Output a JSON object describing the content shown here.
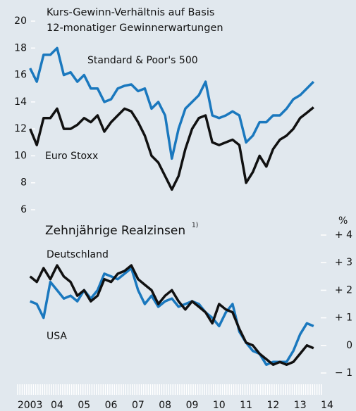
{
  "chart_data": [
    {
      "type": "line",
      "title": [
        "Kurs-Gewinn-Verhältnis auf Basis",
        "12-monatiger Gewinnerwartungen"
      ],
      "x": [
        2003.5,
        2003.75,
        2004,
        2004.25,
        2004.5,
        2004.75,
        2005,
        2005.25,
        2005.5,
        2005.75,
        2006,
        2006.25,
        2006.5,
        2006.75,
        2007,
        2007.25,
        2007.5,
        2007.75,
        2008,
        2008.25,
        2008.5,
        2008.75,
        2009,
        2009.25,
        2009.5,
        2009.75,
        2010,
        2010.25,
        2010.5,
        2010.75,
        2011,
        2011.25,
        2011.5,
        2011.75,
        2012,
        2012.25,
        2012.5,
        2012.75,
        2013,
        2013.25,
        2013.5,
        2013.75,
        2014
      ],
      "series": [
        {
          "name": "Standard & Poor's 500",
          "color": "#1a78be",
          "values": [
            16.5,
            15.5,
            17.5,
            17.5,
            18,
            16,
            16.2,
            15.5,
            16,
            15,
            15,
            14,
            14.2,
            15,
            15.2,
            15.3,
            14.8,
            15,
            13.5,
            14,
            13,
            9.8,
            12,
            13.5,
            14,
            14.5,
            15.5,
            13,
            12.8,
            13,
            13.3,
            13,
            11,
            11.5,
            12.5,
            12.5,
            13,
            13,
            13.5,
            14.2,
            14.5,
            15,
            15.5
          ]
        },
        {
          "name": "Euro Stoxx",
          "color": "#111111",
          "values": [
            12,
            10.8,
            12.8,
            12.8,
            13.5,
            12,
            12,
            12.3,
            12.8,
            12.5,
            13,
            11.8,
            12.5,
            13,
            13.5,
            13.3,
            12.5,
            11.5,
            10,
            9.5,
            8.5,
            7.5,
            8.5,
            10.5,
            12,
            12.8,
            13,
            11,
            10.8,
            11,
            11.2,
            10.8,
            8,
            8.8,
            10,
            9.2,
            10.5,
            11.2,
            11.5,
            12,
            12.8,
            13.2,
            13.6
          ]
        }
      ],
      "xlim": [
        2003,
        2014.5
      ],
      "ylim": [
        6,
        20
      ],
      "yticks": [
        6,
        8,
        10,
        12,
        14,
        16,
        18,
        20
      ]
    },
    {
      "type": "line",
      "title": "Zehnjährige Realzinsen",
      "title_note": "1)",
      "unit": "%",
      "x": [
        2003.5,
        2003.75,
        2004,
        2004.25,
        2004.5,
        2004.75,
        2005,
        2005.25,
        2005.5,
        2005.75,
        2006,
        2006.25,
        2006.5,
        2006.75,
        2007,
        2007.25,
        2007.5,
        2007.75,
        2008,
        2008.25,
        2008.5,
        2008.75,
        2009,
        2009.25,
        2009.5,
        2009.75,
        2010,
        2010.25,
        2010.5,
        2010.75,
        2011,
        2011.25,
        2011.5,
        2011.75,
        2012,
        2012.25,
        2012.5,
        2012.75,
        2013,
        2013.25,
        2013.5,
        2013.75,
        2014
      ],
      "series": [
        {
          "name": "USA",
          "color": "#1a78be",
          "values": [
            1.6,
            1.5,
            1.0,
            2.3,
            2.0,
            1.7,
            1.8,
            1.6,
            2.0,
            1.7,
            2.0,
            2.6,
            2.5,
            2.4,
            2.6,
            2.8,
            2.0,
            1.5,
            1.8,
            1.4,
            1.6,
            1.7,
            1.4,
            1.5,
            1.6,
            1.5,
            1.2,
            1.0,
            0.7,
            1.2,
            1.5,
            0.5,
            0.1,
            -0.2,
            -0.3,
            -0.7,
            -0.6,
            -0.6,
            -0.6,
            -0.2,
            0.4,
            0.8,
            0.7
          ]
        },
        {
          "name": "Deutschland",
          "color": "#111111",
          "values": [
            2.5,
            2.3,
            2.8,
            2.4,
            2.9,
            2.5,
            2.3,
            1.8,
            2.0,
            1.6,
            1.8,
            2.4,
            2.3,
            2.6,
            2.7,
            2.9,
            2.4,
            2.2,
            2.0,
            1.5,
            1.8,
            2.0,
            1.6,
            1.3,
            1.6,
            1.4,
            1.2,
            0.8,
            1.5,
            1.3,
            1.2,
            0.6,
            0.1,
            0.0,
            -0.3,
            -0.5,
            -0.7,
            -0.6,
            -0.7,
            -0.6,
            -0.3,
            0.0,
            -0.1
          ]
        }
      ],
      "xlim": [
        2003,
        2014.5
      ],
      "xticks": [
        {
          "value": 2003.5,
          "label": "2003"
        },
        {
          "value": 2004.5,
          "label": "04"
        },
        {
          "value": 2005.5,
          "label": "05"
        },
        {
          "value": 2006.5,
          "label": "06"
        },
        {
          "value": 2007.5,
          "label": "07"
        },
        {
          "value": 2008.5,
          "label": "08"
        },
        {
          "value": 2009.5,
          "label": "09"
        },
        {
          "value": 2010.5,
          "label": "10"
        },
        {
          "value": 2011.5,
          "label": "11"
        },
        {
          "value": 2012.5,
          "label": "12"
        },
        {
          "value": 2013.5,
          "label": "13"
        },
        {
          "value": 2014.5,
          "label": "14"
        }
      ],
      "ylim": [
        -1,
        4
      ],
      "yticks": [
        {
          "value": -1,
          "label": "− 1"
        },
        0,
        {
          "value": 1,
          "label": "+ 1"
        },
        {
          "value": 2,
          "label": "+ 2"
        },
        {
          "value": 3,
          "label": "+ 3"
        },
        {
          "value": 4,
          "label": "+ 4"
        }
      ]
    }
  ]
}
